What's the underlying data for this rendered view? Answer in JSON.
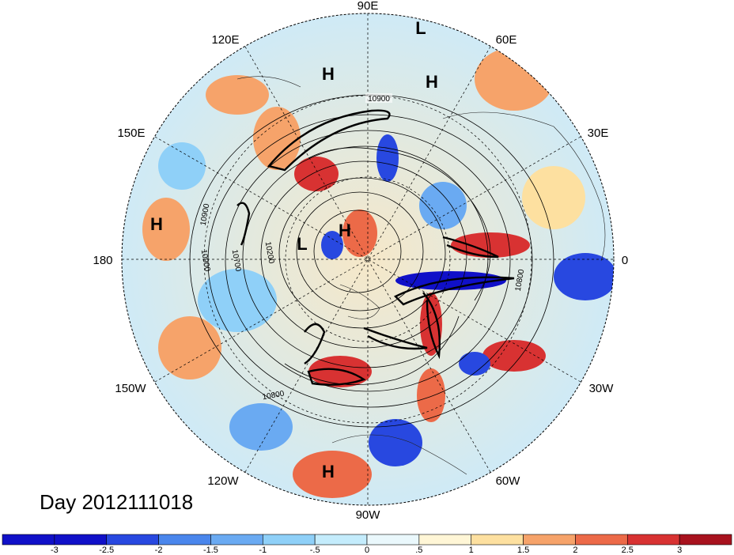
{
  "date_label": "Day 2012111018",
  "longitude_labels": [
    "90E",
    "60E",
    "30E",
    "0",
    "30W",
    "60W",
    "90W",
    "120W",
    "150W",
    "180",
    "150E",
    "120E"
  ],
  "pressure_systems": [
    "L",
    "H",
    "H",
    "H",
    "H",
    "L",
    "H",
    "H"
  ],
  "contour_labels": [
    "10900",
    "10900",
    "10900",
    "10700",
    "10200",
    "10800",
    "10800",
    "10500"
  ],
  "colorbar": {
    "ticks": [
      "-3",
      "-2.5",
      "-2",
      "-1.5",
      "-1",
      "-.5",
      "0",
      ".5",
      "1",
      "1.5",
      "2",
      "2.5",
      "3"
    ],
    "colors": [
      "#1010c8",
      "#2848e0",
      "#4a86ec",
      "#6aaaf2",
      "#8fd0f8",
      "#c4ecfc",
      "#eaf8fc",
      "#fff6d6",
      "#fde0a0",
      "#f6a36a",
      "#ec6a48",
      "#d83232",
      "#a8121e"
    ]
  }
}
